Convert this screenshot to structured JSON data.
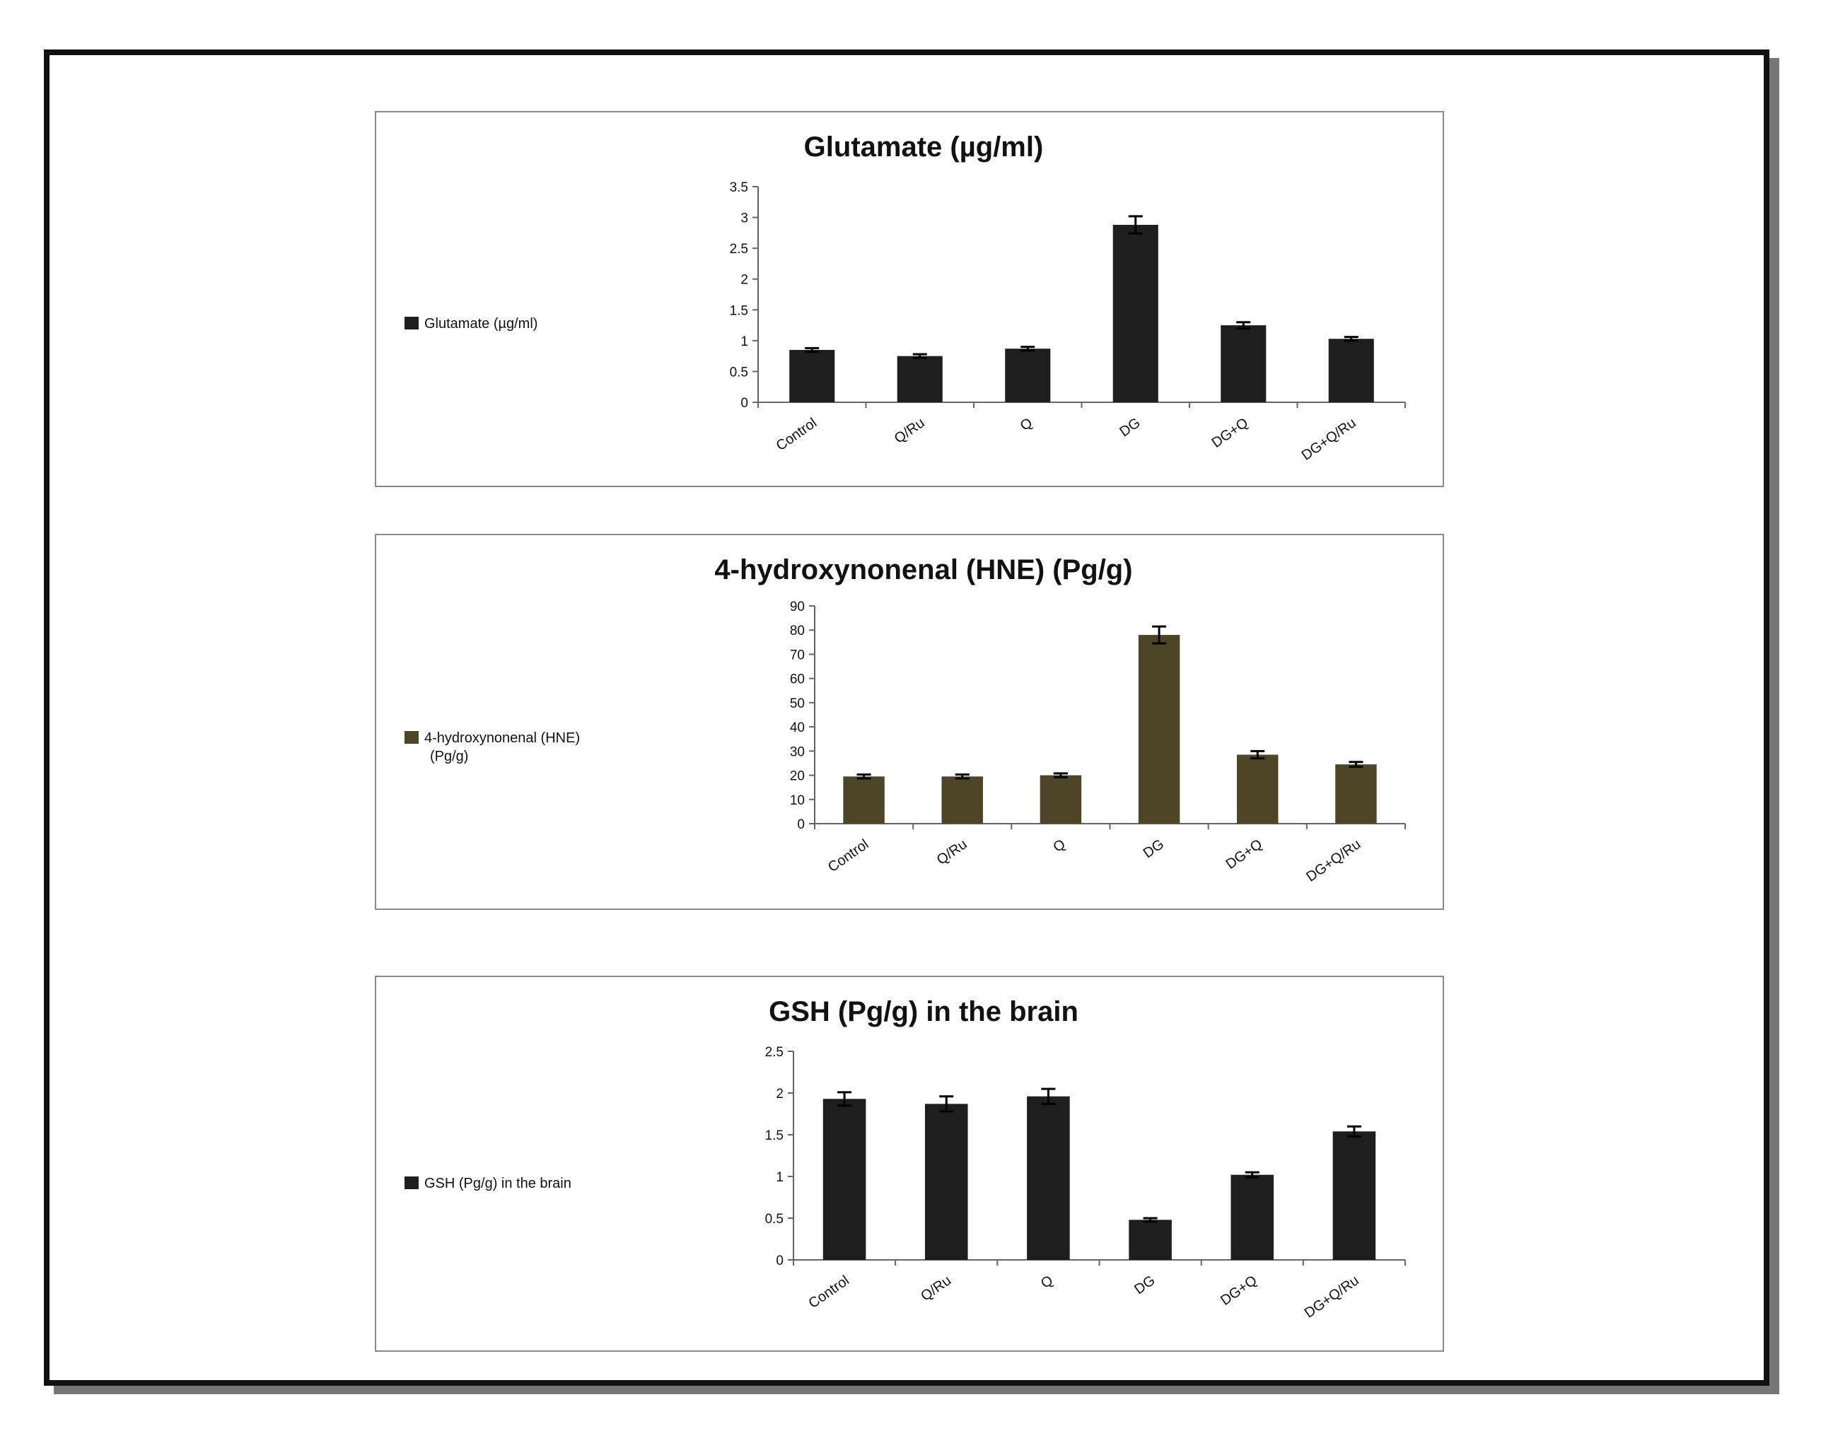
{
  "figure": {
    "colors": {
      "dark": "#1e1e1e",
      "olive": "#4e4526",
      "axis": "#666666",
      "text": "#111111"
    }
  },
  "chart_data": [
    {
      "type": "bar",
      "title": "Glutamate (µg/ml)",
      "categories": [
        "Control",
        "Q/Ru",
        "Q",
        "DG",
        "DG+Q",
        "DG+Q/Ru"
      ],
      "series": [
        {
          "name": "Glutamate (µg/ml)",
          "values": [
            0.85,
            0.75,
            0.87,
            2.88,
            1.25,
            1.03
          ],
          "errors": [
            0.03,
            0.03,
            0.03,
            0.14,
            0.05,
            0.03
          ],
          "color": "#1e1e1e"
        }
      ],
      "yticks": [
        "0",
        "0.5",
        "1",
        "1.5",
        "2",
        "2.5",
        "3",
        "3.5"
      ],
      "ylim": [
        0,
        3.5
      ],
      "legend": "left"
    },
    {
      "type": "bar",
      "title": "4-hydroxynonenal (HNE) (Pg/g)",
      "categories": [
        "Control",
        "Q/Ru",
        "Q",
        "DG",
        "DG+Q",
        "DG+Q/Ru"
      ],
      "series": [
        {
          "name": "4-hydroxynonenal (HNE) (Pg/g)",
          "values": [
            19.5,
            19.5,
            20,
            78,
            28.5,
            24.5
          ],
          "errors": [
            0.8,
            0.8,
            0.8,
            3.5,
            1.5,
            1.0
          ],
          "color": "#4e4526"
        }
      ],
      "yticks": [
        "0",
        "10",
        "20",
        "30",
        "40",
        "50",
        "60",
        "70",
        "80",
        "90"
      ],
      "ylim": [
        0,
        90
      ],
      "legend": "left"
    },
    {
      "type": "bar",
      "title": "GSH (Pg/g) in the brain",
      "categories": [
        "Control",
        "Q/Ru",
        "Q",
        "DG",
        "DG+Q",
        "DG+Q/Ru"
      ],
      "series": [
        {
          "name": "GSH (Pg/g) in the brain",
          "values": [
            1.93,
            1.87,
            1.96,
            0.48,
            1.02,
            1.54
          ],
          "errors": [
            0.08,
            0.09,
            0.09,
            0.02,
            0.03,
            0.06
          ],
          "color": "#1e1e1e"
        }
      ],
      "yticks": [
        "0",
        "0.5",
        "1",
        "1.5",
        "2",
        "2.5"
      ],
      "ylim": [
        0,
        2.5
      ],
      "legend": "left"
    }
  ]
}
